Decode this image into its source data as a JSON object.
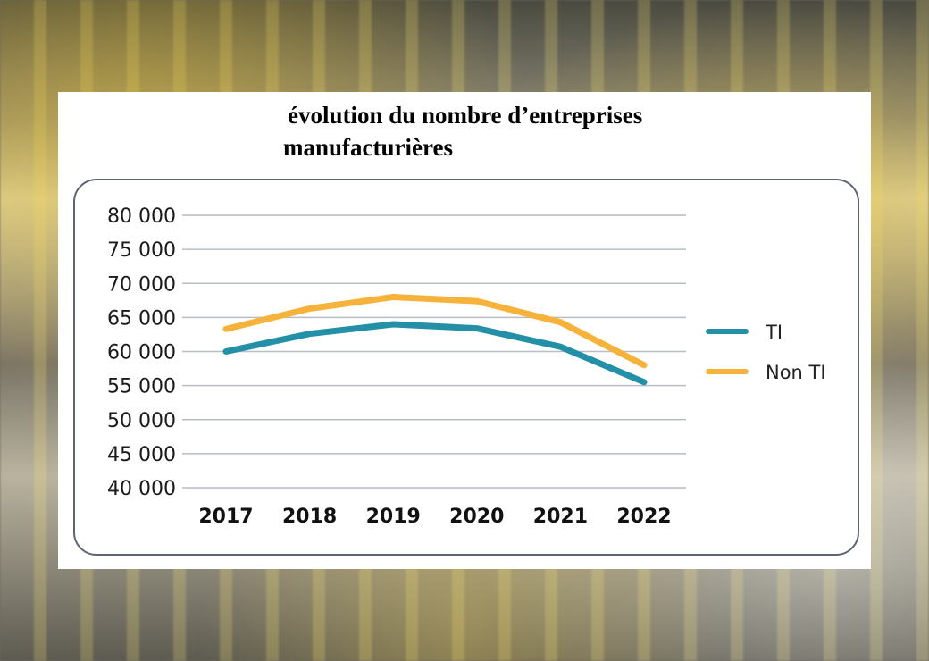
{
  "chart_data": {
    "type": "line",
    "title_line1": "évolution du nombre d’entreprises",
    "title_line2": "manufacturières",
    "xlabel": "",
    "ylabel": "",
    "x": [
      "2017",
      "2018",
      "2019",
      "2020",
      "2021",
      "2022"
    ],
    "y_ticks": [
      "80 000",
      "75 000",
      "70 000",
      "65 000",
      "60 000",
      "55 000",
      "50 000",
      "45 000",
      "40 000"
    ],
    "ylim": [
      40000,
      80000
    ],
    "grid": true,
    "legend_position": "right",
    "series": [
      {
        "name": "TI",
        "color": "#2390a8",
        "values": [
          60000,
          62600,
          64000,
          63400,
          60700,
          55500
        ]
      },
      {
        "name": "Non TI",
        "color": "#f6b23a",
        "values": [
          63300,
          66300,
          68000,
          67400,
          64300,
          58000
        ]
      }
    ]
  }
}
